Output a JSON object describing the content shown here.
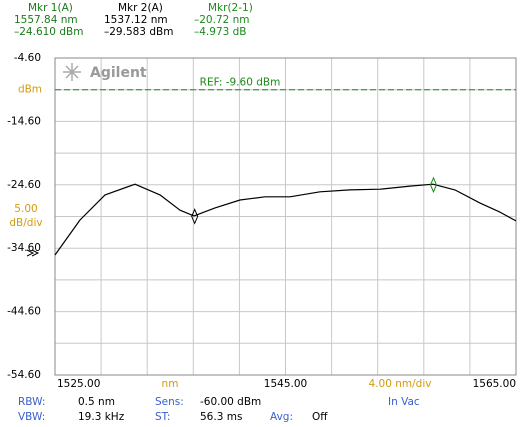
{
  "chart_data": {
    "type": "line",
    "logo": "Agilent",
    "x": [
      1525,
      1527.17,
      1529.34,
      1531.94,
      1534.11,
      1535.85,
      1537.06,
      1538.88,
      1541.05,
      1543.22,
      1545.39,
      1547.99,
      1550.6,
      1553.2,
      1555.8,
      1557.8,
      1559.7,
      1561.9,
      1563.6,
      1565
    ],
    "series": [
      {
        "color": "#000000",
        "values": [
          -35.67,
          -30.15,
          -26.2,
          -24.5,
          -26.2,
          -28.6,
          -29.5,
          -28.25,
          -27.0,
          -26.5,
          -26.5,
          -25.7,
          -25.4,
          -25.3,
          -24.8,
          -24.5,
          -25.4,
          -27.5,
          -28.9,
          -30.3
        ]
      }
    ],
    "xlim": [
      1525,
      1565
    ],
    "ylim": [
      -54.6,
      -4.6
    ],
    "xticks": [
      {
        "value": 1525,
        "label": "1525.00"
      },
      {
        "value": 1545,
        "label": "1545.00"
      },
      {
        "value": 1565,
        "label": "1565.00"
      }
    ],
    "xminorticks": [
      1529,
      1533,
      1537,
      1541,
      1549,
      1553,
      1557,
      1561
    ],
    "yticks": [
      {
        "value": -4.6,
        "label": "-4.60"
      },
      {
        "value": -14.6,
        "label": "-14.60"
      },
      {
        "value": -24.6,
        "label": "-24.60"
      },
      {
        "value": -34.6,
        "label": "-34.60"
      },
      {
        "value": -44.6,
        "label": "-44.60"
      },
      {
        "value": -54.6,
        "label": "-54.60"
      }
    ],
    "yminorticks": [
      -9.6,
      -19.6,
      -29.6,
      -39.6,
      -49.6
    ],
    "grid": true,
    "y_unit": "dBm",
    "y_scale_label": [
      "5.00",
      "dB/div"
    ],
    "x_unit": "nm",
    "x_scale_label": "4.00 nm/div",
    "reference": {
      "value": -9.6,
      "label": "REF: -9.60 dBm",
      "color": "#1a8a1a"
    },
    "markers": [
      {
        "name": "Mkr 1(A)",
        "x": 1557.84,
        "y": -24.61,
        "x_label": "1557.84 nm",
        "y_label": "–24.610 dBm",
        "color": "#1a7a1a"
      },
      {
        "name": "Mkr 2(A)",
        "x": 1537.12,
        "y": -29.583,
        "x_label": "1537.12 nm",
        "y_label": "–29.583 dBm",
        "color": "#000000"
      }
    ],
    "delta": {
      "name": "Mkr(2-1)",
      "x_label": "–20.72 nm",
      "y_label": "–4.973 dB",
      "color": "#1a8a1a"
    },
    "settings": [
      [
        {
          "label": "RBW:",
          "value": "0.5 nm"
        },
        {
          "label": "Sens:",
          "value": "-60.00 dBm"
        },
        {
          "label": "In Vac"
        }
      ],
      [
        {
          "label": "VBW:",
          "value": "19.3 kHz"
        },
        {
          "label": "ST:",
          "value": "56.3 ms"
        },
        {
          "label": "Avg:",
          "value": "Off"
        }
      ]
    ]
  }
}
